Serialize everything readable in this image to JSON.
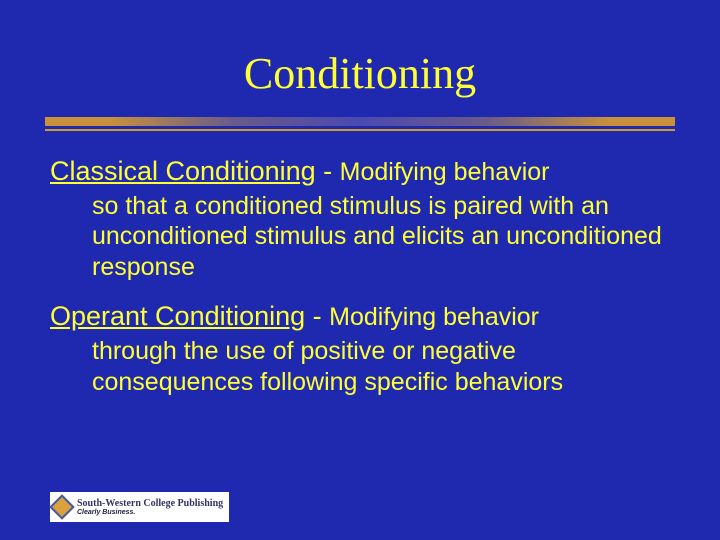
{
  "colors": {
    "background": "#1e29b0",
    "text": "#ffff33",
    "divider_accent": "#cc9933"
  },
  "title": "Conditioning",
  "terms": [
    {
      "name": "Classical Conditioning",
      "separator": " - ",
      "def_first_line_tail": "Modifying behavior",
      "def_rest": "so that a conditioned stimulus is paired with an unconditioned stimulus and elicits an unconditioned response"
    },
    {
      "name": "Operant Conditioning",
      "separator": " - ",
      "def_first_line_tail": "Modifying behavior",
      "def_rest": "through the use of positive or negative consequences following specific behaviors"
    }
  ],
  "logo": {
    "main": "South-Western College Publishing",
    "sub": "Clearly Business."
  },
  "typography": {
    "title_font": "Times New Roman",
    "title_size_pt": 33,
    "body_font": "Arial",
    "term_size_pt": 20,
    "def_size_pt": 19
  }
}
